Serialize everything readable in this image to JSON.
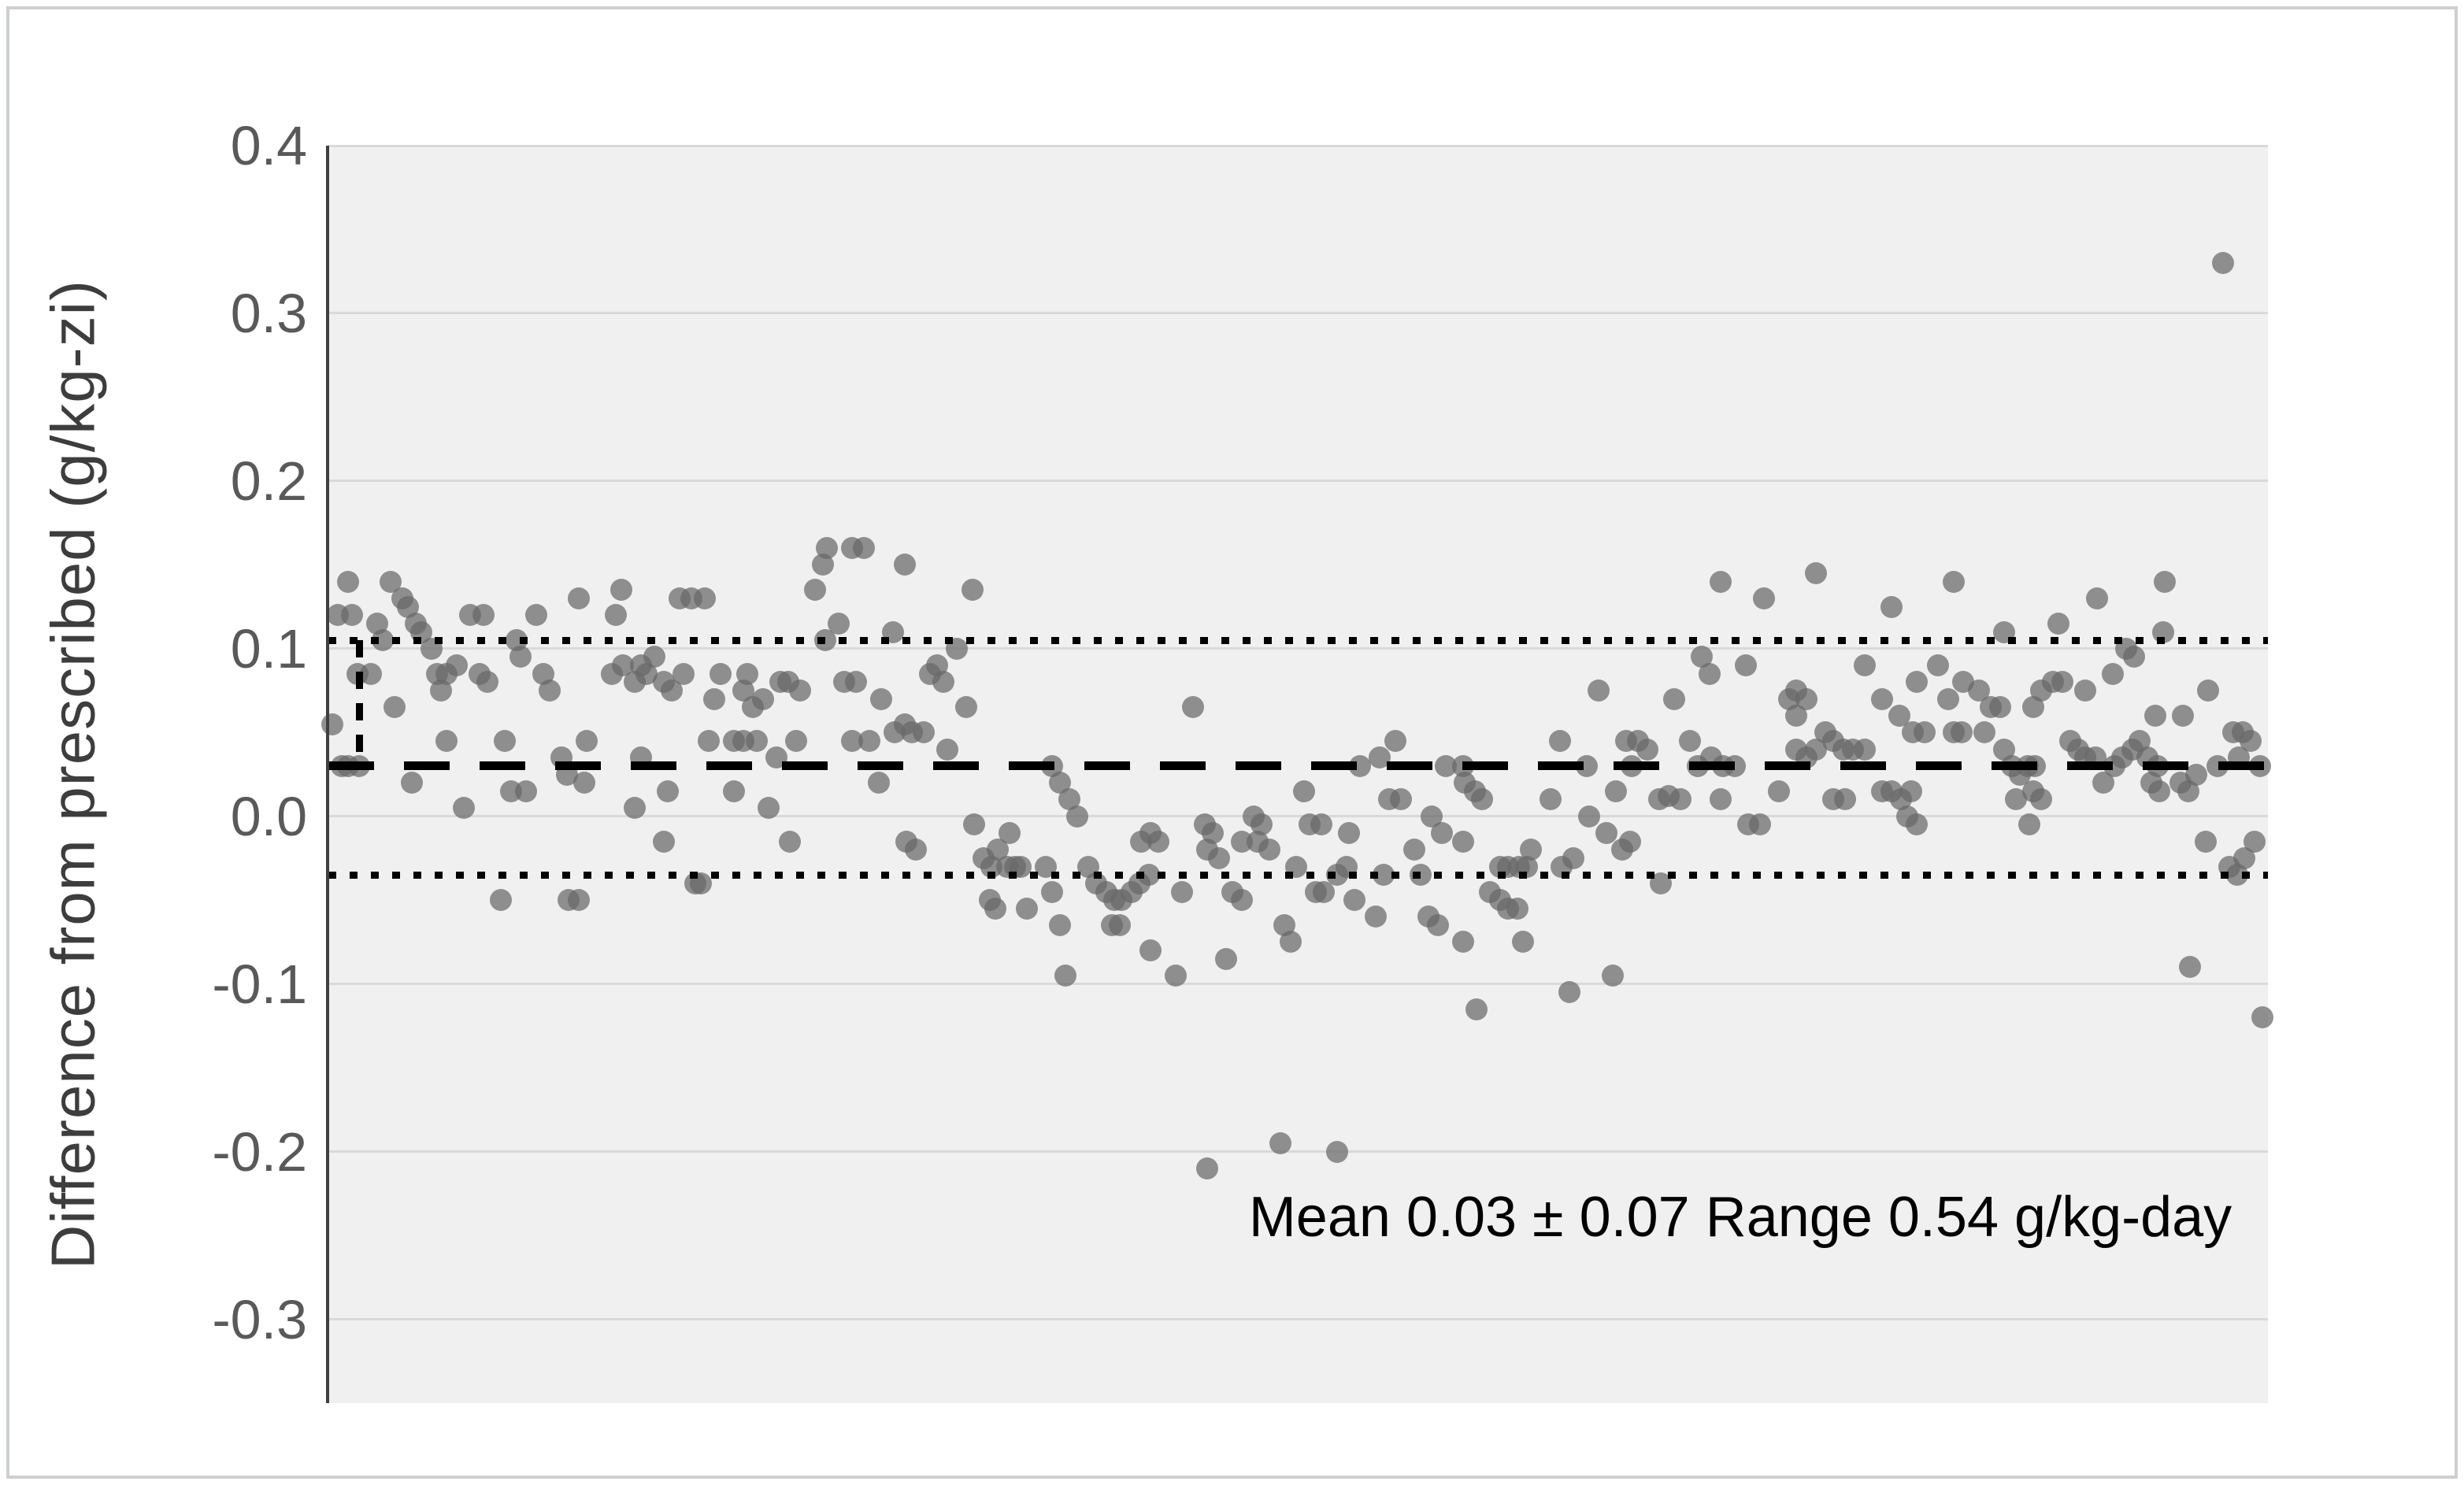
{
  "chart_data": {
    "type": "scatter",
    "title": "",
    "xlabel": "",
    "ylabel": "Difference from prescribed (g/kg-zi)",
    "annotation": "Mean 0.03 ± 0.07 Range 0.54 g/kg-day",
    "ylim": [
      -0.35,
      0.4
    ],
    "yticks": [
      0.4,
      0.3,
      0.2,
      0.1,
      0.0,
      -0.1,
      -0.2,
      -0.3
    ],
    "xticks": [],
    "grid": "horizontal",
    "legend": "none",
    "mean_line": 0.03,
    "upper_sd_line": 0.105,
    "lower_sd_line": -0.035,
    "sd_bracket_x_pct": 1.6,
    "marker_color": "#686868",
    "plot_bg": "#f0f0f1",
    "gridline_color": "#d9d9d9",
    "line_color": "#000000",
    "points_x_unit": "percent_of_plot_width",
    "points_y_unit": "g/kg",
    "points": [
      [
        0.5,
        0.12
      ],
      [
        1.0,
        0.14
      ],
      [
        1.2,
        0.12
      ],
      [
        3.2,
        0.14
      ],
      [
        3.8,
        0.13
      ],
      [
        4.1,
        0.125
      ],
      [
        4.5,
        0.115
      ],
      [
        4.8,
        0.11
      ],
      [
        2.5,
        0.115
      ],
      [
        2.8,
        0.105
      ],
      [
        5.3,
        0.1
      ],
      [
        5.6,
        0.085
      ],
      [
        5.8,
        0.075
      ],
      [
        6.1,
        0.085
      ],
      [
        6.6,
        0.09
      ],
      [
        1.5,
        0.085
      ],
      [
        2.2,
        0.085
      ],
      [
        7.3,
        0.12
      ],
      [
        8.0,
        0.12
      ],
      [
        7.8,
        0.085
      ],
      [
        8.2,
        0.08
      ],
      [
        10.7,
        0.12
      ],
      [
        12.9,
        0.13
      ],
      [
        9.7,
        0.105
      ],
      [
        9.9,
        0.095
      ],
      [
        11.1,
        0.085
      ],
      [
        11.4,
        0.075
      ],
      [
        3.4,
        0.065
      ],
      [
        0.2,
        0.055
      ],
      [
        6.1,
        0.045
      ],
      [
        9.1,
        0.045
      ],
      [
        13.3,
        0.045
      ],
      [
        0.7,
        0.03
      ],
      [
        1.0,
        0.03
      ],
      [
        1.6,
        0.03
      ],
      [
        12.0,
        0.035
      ],
      [
        12.3,
        0.025
      ],
      [
        4.3,
        0.02
      ],
      [
        9.4,
        0.015
      ],
      [
        10.2,
        0.015
      ],
      [
        13.2,
        0.02
      ],
      [
        7.0,
        0.005
      ],
      [
        8.9,
        -0.05
      ],
      [
        12.4,
        -0.05
      ],
      [
        12.9,
        -0.05
      ],
      [
        14.8,
        0.12
      ],
      [
        15.1,
        0.135
      ],
      [
        18.1,
        0.13
      ],
      [
        18.7,
        0.13
      ],
      [
        19.4,
        0.13
      ],
      [
        25.1,
        0.135
      ],
      [
        25.5,
        0.15
      ],
      [
        25.7,
        0.16
      ],
      [
        27.0,
        0.16
      ],
      [
        27.6,
        0.16
      ],
      [
        25.6,
        0.105
      ],
      [
        26.3,
        0.115
      ],
      [
        14.6,
        0.085
      ],
      [
        15.2,
        0.09
      ],
      [
        15.8,
        0.08
      ],
      [
        16.1,
        0.09
      ],
      [
        16.4,
        0.085
      ],
      [
        16.8,
        0.095
      ],
      [
        17.3,
        0.08
      ],
      [
        17.7,
        0.075
      ],
      [
        18.3,
        0.085
      ],
      [
        20.2,
        0.085
      ],
      [
        19.9,
        0.07
      ],
      [
        21.4,
        0.075
      ],
      [
        21.6,
        0.085
      ],
      [
        21.9,
        0.065
      ],
      [
        22.4,
        0.07
      ],
      [
        23.3,
        0.08
      ],
      [
        23.7,
        0.08
      ],
      [
        24.3,
        0.075
      ],
      [
        26.6,
        0.08
      ],
      [
        27.2,
        0.08
      ],
      [
        28.5,
        0.07
      ],
      [
        19.6,
        0.045
      ],
      [
        20.9,
        0.045
      ],
      [
        21.4,
        0.045
      ],
      [
        22.1,
        0.045
      ],
      [
        24.1,
        0.045
      ],
      [
        27.0,
        0.045
      ],
      [
        27.9,
        0.045
      ],
      [
        16.1,
        0.035
      ],
      [
        23.1,
        0.035
      ],
      [
        28.4,
        0.02
      ],
      [
        17.5,
        0.015
      ],
      [
        20.9,
        0.015
      ],
      [
        22.7,
        0.005
      ],
      [
        15.8,
        0.005
      ],
      [
        17.3,
        -0.015
      ],
      [
        23.8,
        -0.015
      ],
      [
        18.9,
        -0.04
      ],
      [
        19.2,
        -0.04
      ],
      [
        29.7,
        0.15
      ],
      [
        33.2,
        0.135
      ],
      [
        29.1,
        0.11
      ],
      [
        32.4,
        0.1
      ],
      [
        31.0,
        0.085
      ],
      [
        31.4,
        0.09
      ],
      [
        31.7,
        0.08
      ],
      [
        32.9,
        0.065
      ],
      [
        29.2,
        0.05
      ],
      [
        29.7,
        0.055
      ],
      [
        30.1,
        0.05
      ],
      [
        30.7,
        0.05
      ],
      [
        31.9,
        0.04
      ],
      [
        37.3,
        0.03
      ],
      [
        37.7,
        0.02
      ],
      [
        38.2,
        0.01
      ],
      [
        38.6,
        0.0
      ],
      [
        33.3,
        -0.005
      ],
      [
        35.1,
        -0.01
      ],
      [
        30.3,
        -0.02
      ],
      [
        29.8,
        -0.015
      ],
      [
        33.8,
        -0.025
      ],
      [
        34.2,
        -0.03
      ],
      [
        34.5,
        -0.02
      ],
      [
        35.0,
        -0.03
      ],
      [
        35.4,
        -0.03
      ],
      [
        35.7,
        -0.03
      ],
      [
        34.1,
        -0.05
      ],
      [
        34.4,
        -0.055
      ],
      [
        36.0,
        -0.055
      ],
      [
        37.0,
        -0.03
      ],
      [
        37.3,
        -0.045
      ],
      [
        37.7,
        -0.065
      ],
      [
        40.4,
        -0.065
      ],
      [
        40.8,
        -0.065
      ],
      [
        39.2,
        -0.03
      ],
      [
        39.6,
        -0.04
      ],
      [
        40.1,
        -0.045
      ],
      [
        40.5,
        -0.05
      ],
      [
        40.9,
        -0.05
      ],
      [
        41.4,
        -0.045
      ],
      [
        41.8,
        -0.04
      ],
      [
        42.3,
        -0.035
      ],
      [
        41.9,
        -0.015
      ],
      [
        42.4,
        -0.01
      ],
      [
        42.8,
        -0.015
      ],
      [
        38.0,
        -0.095
      ],
      [
        42.4,
        -0.08
      ],
      [
        44.6,
        0.065
      ],
      [
        55.0,
        0.045
      ],
      [
        53.2,
        0.03
      ],
      [
        54.2,
        0.035
      ],
      [
        57.6,
        0.03
      ],
      [
        50.3,
        0.015
      ],
      [
        54.7,
        0.01
      ],
      [
        55.3,
        0.01
      ],
      [
        50.6,
        -0.005
      ],
      [
        51.2,
        -0.005
      ],
      [
        56.9,
        0.0
      ],
      [
        57.4,
        -0.01
      ],
      [
        45.2,
        -0.005
      ],
      [
        45.6,
        -0.01
      ],
      [
        45.3,
        -0.02
      ],
      [
        45.9,
        -0.025
      ],
      [
        47.7,
        0.0
      ],
      [
        48.1,
        -0.005
      ],
      [
        47.9,
        -0.015
      ],
      [
        48.5,
        -0.02
      ],
      [
        47.1,
        -0.015
      ],
      [
        52.6,
        -0.01
      ],
      [
        56.0,
        -0.02
      ],
      [
        49.9,
        -0.03
      ],
      [
        52.0,
        -0.035
      ],
      [
        52.5,
        -0.03
      ],
      [
        54.4,
        -0.035
      ],
      [
        56.3,
        -0.035
      ],
      [
        44.0,
        -0.045
      ],
      [
        46.6,
        -0.045
      ],
      [
        47.1,
        -0.05
      ],
      [
        50.9,
        -0.045
      ],
      [
        51.3,
        -0.045
      ],
      [
        52.9,
        -0.05
      ],
      [
        54.0,
        -0.06
      ],
      [
        49.3,
        -0.065
      ],
      [
        49.6,
        -0.075
      ],
      [
        56.7,
        -0.06
      ],
      [
        57.2,
        -0.065
      ],
      [
        46.3,
        -0.085
      ],
      [
        43.7,
        -0.095
      ],
      [
        45.3,
        -0.21
      ],
      [
        49.1,
        -0.195
      ],
      [
        52.0,
        -0.2
      ],
      [
        71.8,
        0.14
      ],
      [
        70.8,
        0.095
      ],
      [
        71.2,
        0.085
      ],
      [
        65.5,
        0.075
      ],
      [
        69.4,
        0.07
      ],
      [
        63.5,
        0.045
      ],
      [
        66.9,
        0.045
      ],
      [
        67.5,
        0.045
      ],
      [
        68.0,
        0.04
      ],
      [
        67.2,
        0.03
      ],
      [
        70.2,
        0.045
      ],
      [
        70.6,
        0.03
      ],
      [
        58.5,
        0.03
      ],
      [
        64.9,
        0.03
      ],
      [
        71.3,
        0.035
      ],
      [
        71.9,
        0.03
      ],
      [
        72.5,
        0.03
      ],
      [
        58.6,
        0.02
      ],
      [
        59.1,
        0.015
      ],
      [
        59.5,
        0.01
      ],
      [
        63.0,
        0.01
      ],
      [
        66.4,
        0.015
      ],
      [
        68.6,
        0.01
      ],
      [
        69.1,
        0.012
      ],
      [
        69.7,
        0.01
      ],
      [
        71.8,
        0.01
      ],
      [
        65.0,
        0.0
      ],
      [
        65.9,
        -0.01
      ],
      [
        58.5,
        -0.015
      ],
      [
        62.0,
        -0.02
      ],
      [
        66.7,
        -0.02
      ],
      [
        67.1,
        -0.015
      ],
      [
        64.2,
        -0.025
      ],
      [
        63.6,
        -0.03
      ],
      [
        60.4,
        -0.03
      ],
      [
        60.8,
        -0.03
      ],
      [
        61.4,
        -0.03
      ],
      [
        61.8,
        -0.03
      ],
      [
        59.9,
        -0.045
      ],
      [
        60.4,
        -0.05
      ],
      [
        60.8,
        -0.055
      ],
      [
        61.3,
        -0.055
      ],
      [
        68.7,
        -0.04
      ],
      [
        58.5,
        -0.075
      ],
      [
        61.6,
        -0.075
      ],
      [
        66.2,
        -0.095
      ],
      [
        64.0,
        -0.105
      ],
      [
        59.2,
        -0.115
      ],
      [
        74.0,
        0.13
      ],
      [
        76.7,
        0.145
      ],
      [
        80.6,
        0.125
      ],
      [
        83.8,
        0.14
      ],
      [
        86.4,
        0.11
      ],
      [
        73.1,
        0.09
      ],
      [
        79.2,
        0.09
      ],
      [
        83.0,
        0.09
      ],
      [
        84.3,
        0.08
      ],
      [
        81.9,
        0.08
      ],
      [
        80.1,
        0.07
      ],
      [
        81.0,
        0.06
      ],
      [
        75.3,
        0.07
      ],
      [
        75.7,
        0.075
      ],
      [
        76.2,
        0.07
      ],
      [
        75.7,
        0.06
      ],
      [
        83.5,
        0.07
      ],
      [
        85.7,
        0.065
      ],
      [
        86.2,
        0.065
      ],
      [
        85.1,
        0.075
      ],
      [
        75.7,
        0.04
      ],
      [
        76.2,
        0.035
      ],
      [
        76.7,
        0.04
      ],
      [
        77.2,
        0.05
      ],
      [
        77.6,
        0.045
      ],
      [
        78.1,
        0.04
      ],
      [
        78.6,
        0.04
      ],
      [
        79.2,
        0.04
      ],
      [
        81.7,
        0.05
      ],
      [
        82.3,
        0.05
      ],
      [
        83.8,
        0.05
      ],
      [
        84.2,
        0.05
      ],
      [
        85.4,
        0.05
      ],
      [
        86.4,
        0.04
      ],
      [
        86.8,
        0.03
      ],
      [
        87.2,
        0.025
      ],
      [
        74.8,
        0.015
      ],
      [
        77.6,
        0.01
      ],
      [
        78.2,
        0.01
      ],
      [
        80.1,
        0.015
      ],
      [
        80.6,
        0.015
      ],
      [
        81.1,
        0.01
      ],
      [
        81.6,
        0.015
      ],
      [
        87.0,
        0.01
      ],
      [
        73.2,
        -0.005
      ],
      [
        73.8,
        -0.005
      ],
      [
        81.4,
        0.0
      ],
      [
        81.9,
        -0.005
      ],
      [
        89.2,
        0.115
      ],
      [
        91.2,
        0.13
      ],
      [
        94.7,
        0.14
      ],
      [
        94.6,
        0.11
      ],
      [
        92.7,
        0.1
      ],
      [
        93.1,
        0.095
      ],
      [
        92.0,
        0.085
      ],
      [
        90.6,
        0.075
      ],
      [
        87.9,
        0.065
      ],
      [
        88.3,
        0.075
      ],
      [
        88.9,
        0.08
      ],
      [
        89.4,
        0.08
      ],
      [
        94.2,
        0.06
      ],
      [
        95.6,
        0.06
      ],
      [
        96.9,
        0.075
      ],
      [
        87.6,
        0.03
      ],
      [
        88.0,
        0.03
      ],
      [
        87.9,
        0.015
      ],
      [
        88.3,
        0.01
      ],
      [
        87.7,
        -0.005
      ],
      [
        89.8,
        0.045
      ],
      [
        90.2,
        0.04
      ],
      [
        90.6,
        0.035
      ],
      [
        91.1,
        0.035
      ],
      [
        92.1,
        0.03
      ],
      [
        92.5,
        0.035
      ],
      [
        93.0,
        0.04
      ],
      [
        93.4,
        0.045
      ],
      [
        93.8,
        0.035
      ],
      [
        94.3,
        0.03
      ],
      [
        91.5,
        0.02
      ],
      [
        94.0,
        0.02
      ],
      [
        94.4,
        0.015
      ],
      [
        95.5,
        0.02
      ],
      [
        95.9,
        0.015
      ],
      [
        96.3,
        0.025
      ],
      [
        97.4,
        0.03
      ],
      [
        98.2,
        0.05
      ],
      [
        98.7,
        0.05
      ],
      [
        99.1,
        0.045
      ],
      [
        98.5,
        0.035
      ],
      [
        99.6,
        0.03
      ],
      [
        96.8,
        -0.015
      ],
      [
        98.0,
        -0.03
      ],
      [
        98.4,
        -0.035
      ],
      [
        98.8,
        -0.025
      ],
      [
        99.3,
        -0.015
      ],
      [
        97.7,
        0.33
      ],
      [
        96.0,
        -0.09
      ],
      [
        99.7,
        -0.12
      ]
    ]
  }
}
